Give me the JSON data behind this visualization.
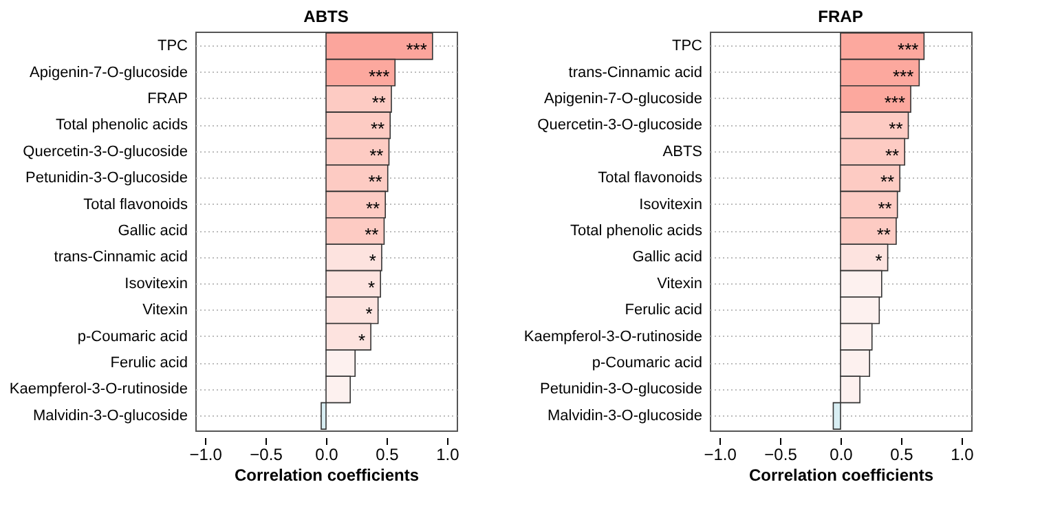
{
  "chart_data": [
    {
      "type": "bar",
      "orientation": "horizontal",
      "title": "ABTS",
      "xlabel": "Correlation coefficients",
      "categories": [
        "TPC",
        "Apigenin-7-O-glucoside",
        "FRAP",
        "Total phenolic acids",
        "Quercetin-3-O-glucoside",
        "Petunidin-3-O-glucoside",
        "Total flavonoids",
        "Gallic acid",
        "trans-Cinnamic acid",
        "Isovitexin",
        "Vitexin",
        "p-Coumaric acid",
        "Ferulic acid",
        "Kaempferol-3-O-rutinoside",
        "Malvidin-3-O-glucoside"
      ],
      "values": [
        0.88,
        0.57,
        0.54,
        0.53,
        0.52,
        0.51,
        0.49,
        0.48,
        0.46,
        0.45,
        0.43,
        0.37,
        0.24,
        0.2,
        -0.04
      ],
      "colors": [
        "#fba59c",
        "#fca89e",
        "#fdcbc3",
        "#fdcbc3",
        "#fdcbc3",
        "#fdcbc3",
        "#fdcbc3",
        "#fdcbc3",
        "#fde3df",
        "#fde3df",
        "#fde3df",
        "#fde3df",
        "#fdf1ef",
        "#fdf1ef",
        "#d8eef3"
      ],
      "value_labels": [
        "***",
        "***",
        "**",
        "**",
        "**",
        "**",
        "**",
        "**",
        "*",
        "*",
        "*",
        "*",
        null,
        null,
        null
      ],
      "xlim": [
        -1.08,
        1.08
      ],
      "xticks": [
        {
          "value": -1,
          "label": "−1.0"
        },
        {
          "value": -0.5,
          "label": "−0.5"
        },
        {
          "value": 0,
          "label": "0.0"
        },
        {
          "value": 0.5,
          "label": "0.5"
        },
        {
          "value": 1,
          "label": "1.0"
        }
      ],
      "grid": "y"
    },
    {
      "type": "bar",
      "orientation": "horizontal",
      "title": "FRAP",
      "xlabel": "Correlation coefficients",
      "categories": [
        "TPC",
        "trans-Cinnamic acid",
        "Apigenin-7-O-glucoside",
        "Quercetin-3-O-glucoside",
        "ABTS",
        "Total flavonoids",
        "Isovitexin",
        "Total phenolic acids",
        "Gallic acid",
        "Vitexin",
        "Ferulic acid",
        "Kaempferol-3-O-rutinoside",
        "p-Coumaric acid",
        "Petunidin-3-O-glucoside",
        "Malvidin-3-O-glucoside"
      ],
      "values": [
        0.69,
        0.65,
        0.58,
        0.56,
        0.53,
        0.49,
        0.47,
        0.46,
        0.39,
        0.34,
        0.32,
        0.26,
        0.24,
        0.16,
        -0.06
      ],
      "colors": [
        "#fca89e",
        "#fca89e",
        "#fca89e",
        "#fdcbc3",
        "#fdcbc3",
        "#fdcbc3",
        "#fdcbc3",
        "#fdcbc3",
        "#fde3df",
        "#fdf1ef",
        "#fdf1ef",
        "#fdf1ef",
        "#fdf1ef",
        "#fdf1ef",
        "#d8eef3"
      ],
      "value_labels": [
        "***",
        "***",
        "***",
        "**",
        "**",
        "**",
        "**",
        "**",
        "*",
        null,
        null,
        null,
        null,
        null,
        null
      ],
      "xlim": [
        -1.08,
        1.08
      ],
      "xticks": [
        {
          "value": -1,
          "label": "−1.0"
        },
        {
          "value": -0.5,
          "label": "−0.5"
        },
        {
          "value": 0,
          "label": "0.0"
        },
        {
          "value": 0.5,
          "label": "0.5"
        },
        {
          "value": 1,
          "label": "1.0"
        }
      ],
      "grid": "y"
    }
  ]
}
